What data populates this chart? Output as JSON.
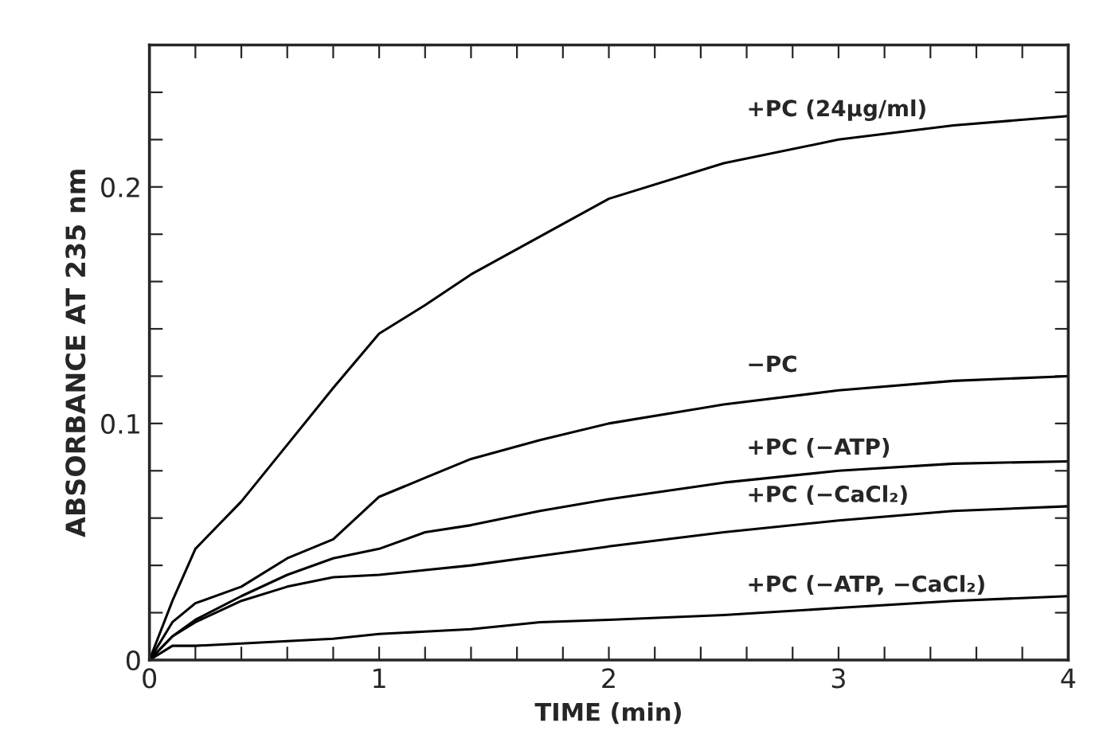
{
  "chart_data": {
    "type": "line",
    "xlabel": "TIME (min)",
    "ylabel": "ABSORBANCE AT 235 nm",
    "xlim": [
      0,
      4
    ],
    "ylim": [
      0,
      0.26
    ],
    "xticks": [
      0,
      {
        "value": 0.2,
        "label": null
      },
      {
        "value": 0.4,
        "label": null
      },
      {
        "value": 0.6,
        "label": null
      },
      {
        "value": 0.8,
        "label": null
      },
      1,
      {
        "value": 1.2,
        "label": null
      },
      {
        "value": 1.4,
        "label": null
      },
      {
        "value": 1.6,
        "label": null
      },
      {
        "value": 1.8,
        "label": null
      },
      2,
      {
        "value": 2.2,
        "label": null
      },
      {
        "value": 2.4,
        "label": null
      },
      {
        "value": 2.6,
        "label": null
      },
      {
        "value": 2.8,
        "label": null
      },
      3,
      {
        "value": 3.2,
        "label": null
      },
      {
        "value": 3.4,
        "label": null
      },
      {
        "value": 3.6,
        "label": null
      },
      {
        "value": 3.8,
        "label": null
      },
      4
    ],
    "yticks": [
      0,
      {
        "value": 0.02,
        "label": null
      },
      {
        "value": 0.04,
        "label": null
      },
      {
        "value": 0.06,
        "label": null
      },
      {
        "value": 0.08,
        "label": null
      },
      0.1,
      {
        "value": 0.12,
        "label": null
      },
      {
        "value": 0.14,
        "label": null
      },
      {
        "value": 0.16,
        "label": null
      },
      {
        "value": 0.18,
        "label": null
      },
      0.2,
      {
        "value": 0.22,
        "label": null
      },
      {
        "value": 0.24,
        "label": null
      }
    ],
    "x": [
      0,
      0.1,
      0.2,
      0.4,
      0.6,
      0.8,
      1.0,
      1.2,
      1.4,
      1.7,
      2.0,
      2.5,
      3.0,
      3.5,
      4.0
    ],
    "series": [
      {
        "name": "+PC (24µg/ml)",
        "color": "#000000",
        "values": [
          0,
          0.025,
          0.047,
          0.067,
          0.091,
          0.115,
          0.138,
          0.15,
          0.163,
          0.179,
          0.195,
          0.21,
          0.22,
          0.226,
          0.23
        ]
      },
      {
        "name": "−PC",
        "color": "#000000",
        "values": [
          0,
          0.016,
          0.024,
          0.031,
          0.043,
          0.051,
          0.069,
          0.077,
          0.085,
          0.093,
          0.1,
          0.108,
          0.114,
          0.118,
          0.12
        ]
      },
      {
        "name": "+PC (−ATP)",
        "color": "#000000",
        "values": [
          0,
          0.01,
          0.017,
          0.027,
          0.036,
          0.043,
          0.047,
          0.054,
          0.057,
          0.063,
          0.068,
          0.075,
          0.08,
          0.083,
          0.084
        ]
      },
      {
        "name": "+PC (−CaCl₂)",
        "color": "#000000",
        "values": [
          0,
          0.01,
          0.016,
          0.025,
          0.031,
          0.035,
          0.036,
          0.038,
          0.04,
          0.044,
          0.048,
          0.054,
          0.059,
          0.063,
          0.065
        ]
      },
      {
        "name": "+PC (−ATP, −CaCl₂)",
        "color": "#000000",
        "values": [
          0,
          0.006,
          0.006,
          0.007,
          0.008,
          0.009,
          0.011,
          0.012,
          0.013,
          0.016,
          0.017,
          0.019,
          0.022,
          0.025,
          0.027
        ]
      }
    ],
    "grid": false,
    "legend": false,
    "marker": "none",
    "line_style": "solid"
  }
}
